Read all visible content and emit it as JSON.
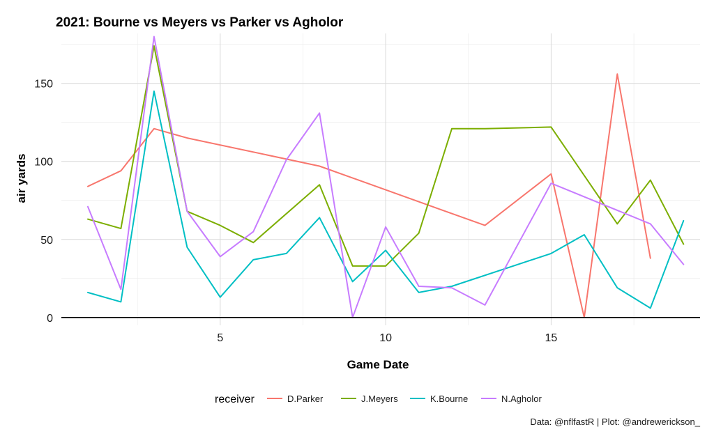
{
  "chart_data": {
    "type": "line",
    "title": "2021: Bourne vs Meyers vs Parker vs Agholor",
    "xlabel": "Game Date",
    "ylabel": "air yards",
    "xlim": [
      0.2,
      19.5
    ],
    "ylim": [
      -5,
      182
    ],
    "x_ticks": [
      5,
      10,
      15
    ],
    "y_ticks": [
      0,
      50,
      100,
      150
    ],
    "grid": true,
    "legend": {
      "title": "receiver",
      "position": "bottom"
    },
    "caption": "Data: @nflfastR | Plot: @andrewerickson_",
    "series": [
      {
        "name": "D.Parker",
        "color": "#F8766D",
        "x": [
          1,
          2,
          3,
          4,
          8,
          13,
          15,
          16,
          17,
          18
        ],
        "y": [
          84,
          94,
          121,
          115,
          97,
          59,
          92,
          0,
          156,
          38
        ]
      },
      {
        "name": "J.Meyers",
        "color": "#7CAE00",
        "x": [
          1,
          2,
          3,
          4,
          5,
          6,
          8,
          9,
          10,
          11,
          12,
          13,
          15,
          17,
          18,
          19
        ],
        "y": [
          63,
          57,
          174,
          68,
          59,
          48,
          85,
          33,
          33,
          54,
          121,
          121,
          122,
          60,
          88,
          47
        ]
      },
      {
        "name": "K.Bourne",
        "color": "#00BFC4",
        "x": [
          1,
          2,
          3,
          4,
          5,
          6,
          7,
          8,
          9,
          10,
          11,
          12,
          15,
          16,
          17,
          18,
          19
        ],
        "y": [
          16,
          10,
          145,
          45,
          13,
          37,
          41,
          64,
          23,
          43,
          16,
          20,
          41,
          53,
          19,
          6,
          62
        ]
      },
      {
        "name": "N.Agholor",
        "color": "#C77CFF",
        "x": [
          1,
          2,
          3,
          4,
          5,
          6,
          7,
          8,
          9,
          10,
          11,
          12,
          13,
          15,
          18,
          19
        ],
        "y": [
          71,
          18,
          180,
          68,
          39,
          55,
          101,
          131,
          0,
          58,
          20,
          19,
          8,
          86,
          60,
          34
        ]
      }
    ]
  }
}
